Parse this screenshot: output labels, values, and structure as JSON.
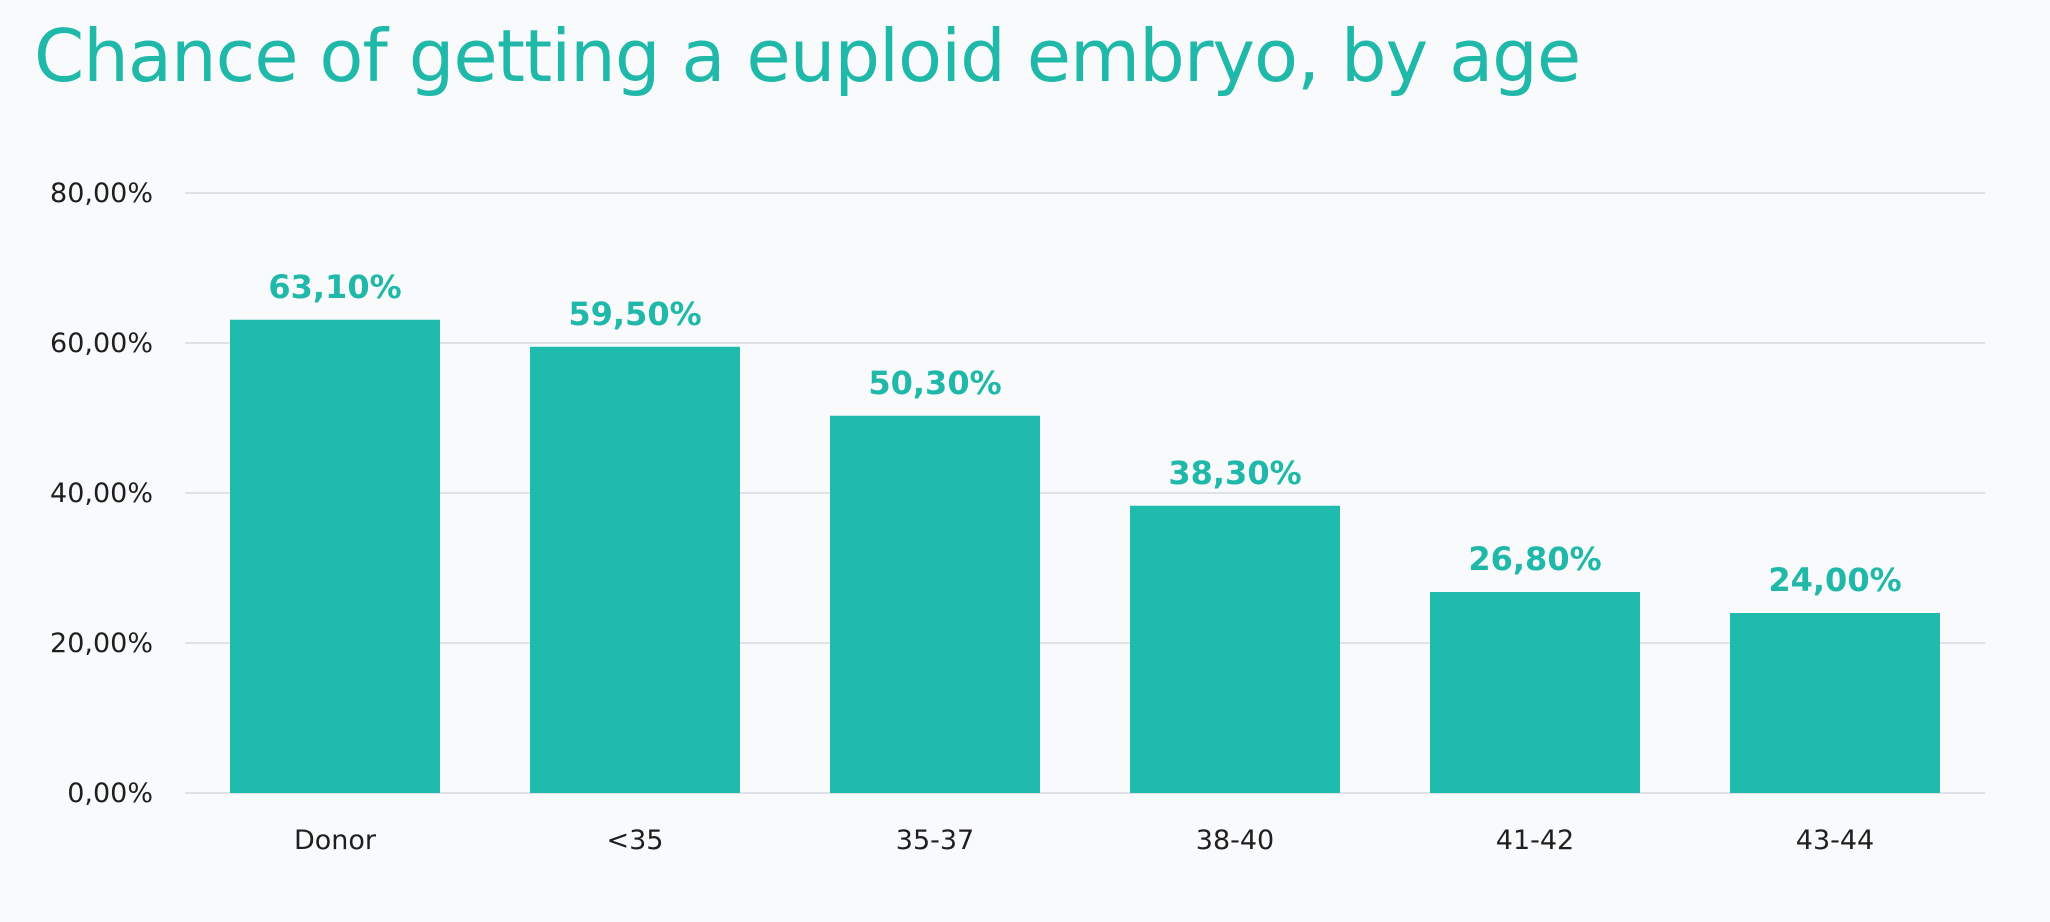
{
  "chart_data": {
    "type": "bar",
    "title": "Chance of getting a euploid embryo, by age",
    "xlabel": "",
    "ylabel": "",
    "categories": [
      "Donor",
      "<35",
      "35-37",
      "38-40",
      "41-42",
      "43-44"
    ],
    "values": [
      63.1,
      59.5,
      50.3,
      38.3,
      26.8,
      24.0
    ],
    "value_labels": [
      "63,10%",
      "59,50%",
      "50,30%",
      "38,30%",
      "26,80%",
      "24,00%"
    ],
    "ylim": [
      0,
      80
    ],
    "y_ticks": [
      0,
      20,
      40,
      60,
      80
    ],
    "y_tick_labels": [
      "0,00%",
      "20,00%",
      "40,00%",
      "60,00%",
      "80,00%"
    ],
    "grid": true,
    "legend": "none",
    "colors": {
      "bar": "#1fbbad",
      "title": "#1fb8a9",
      "data_label": "#1fb8a9",
      "gridline": "#d5d9df",
      "axis_text": "#1f1f1f",
      "background": "#f8fafc"
    }
  }
}
